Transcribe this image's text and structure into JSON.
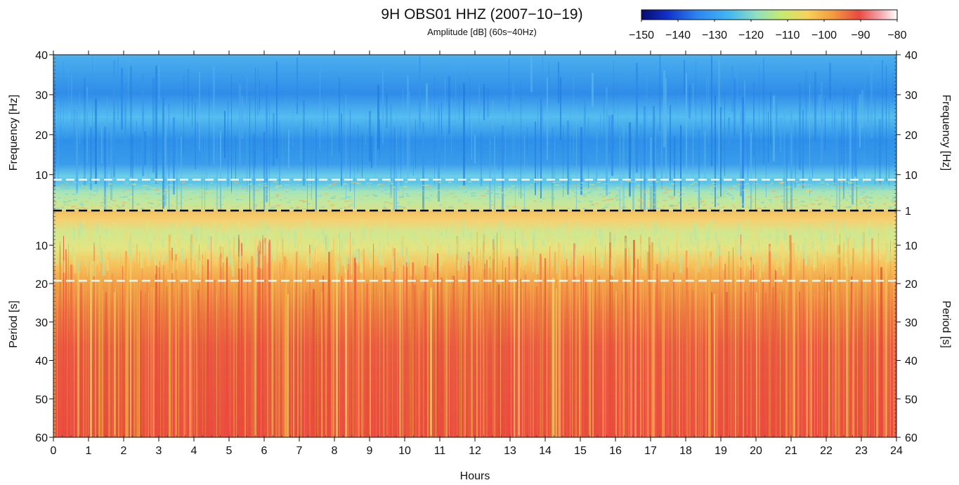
{
  "chart_data": {
    "type": "heatmap",
    "title": "9H OBS01 HHZ (2007−10−19)",
    "subtitle": "Amplitude [dB] (60s−40Hz)",
    "xlabel": "Hours",
    "x_ticks": [
      "0",
      "1",
      "2",
      "3",
      "4",
      "5",
      "6",
      "7",
      "8",
      "9",
      "10",
      "11",
      "12",
      "13",
      "14",
      "15",
      "16",
      "17",
      "18",
      "19",
      "20",
      "21",
      "22",
      "23",
      "24"
    ],
    "xlim": [
      0,
      24
    ],
    "upper_panel": {
      "ylabel": "Frequency [Hz]",
      "y_ticks": [
        "40",
        "30",
        "20",
        "10",
        "1"
      ],
      "ylim_hz": [
        1,
        40
      ],
      "description_values": {
        "dominant_db": -130,
        "band_below_8hz_db": -118
      }
    },
    "lower_panel": {
      "ylabel": "Period [s]",
      "y_ticks": [
        "10",
        "20",
        "30",
        "40",
        "50",
        "60"
      ],
      "ylim_s": [
        1,
        60
      ],
      "description_values": {
        "near_1s_db": -108,
        "near_10s_db": -112,
        "beyond_20s_db": -98
      }
    },
    "colorbar": {
      "ticks": [
        "−150",
        "−140",
        "−130",
        "−120",
        "−110",
        "−100",
        "−90",
        "−80"
      ],
      "range_db": [
        -150,
        -80
      ],
      "colormap": "jet-like (dark blue → cyan → green → yellow → red → white)"
    },
    "reference_lines": [
      {
        "axis": "frequency",
        "value_hz": 8,
        "color": "#ffffff",
        "style": "dashed"
      },
      {
        "axis": "frequency_period_boundary",
        "value": 1,
        "color": "#000000",
        "style": "dashed"
      },
      {
        "axis": "period",
        "value_s": 20,
        "color": "#ffffff",
        "style": "dashed"
      }
    ],
    "grid": false
  }
}
